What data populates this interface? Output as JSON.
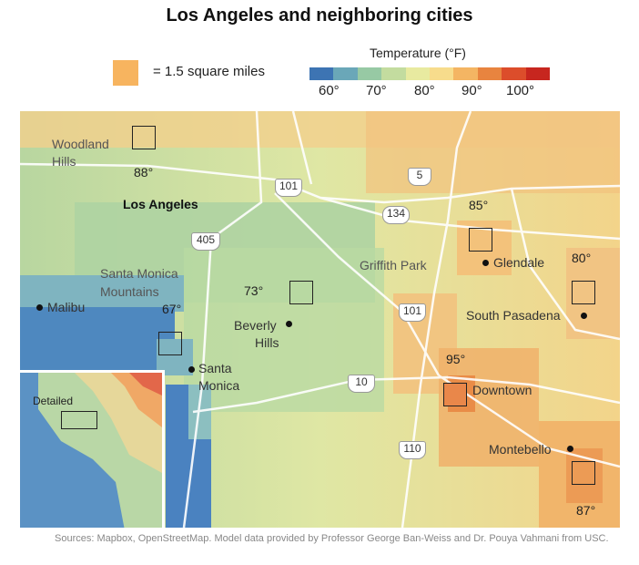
{
  "title": "Los Angeles and neighboring cities",
  "legend": {
    "swatch_label": "= 1.5 square miles",
    "swatch_color": "#f7b45f",
    "temperature_title": "Temperature (°F)",
    "scale_colors": [
      "#3d74b3",
      "#6aa7b8",
      "#97c9a4",
      "#c3dc9f",
      "#e8eaa0",
      "#f7dc8c",
      "#f4b563",
      "#e8843f",
      "#dc4d2b",
      "#c7261f"
    ],
    "ticks": [
      "60°",
      "70°",
      "80°",
      "90°",
      "100°"
    ]
  },
  "places": {
    "woodland_hills": "Woodland Hills",
    "woodland_line1": "Woodland",
    "woodland_line2": "Hills",
    "los_angeles": "Los Angeles",
    "santa_monica_mountains_1": "Santa Monica",
    "santa_monica_mountains_2": "Mountains",
    "malibu": "Malibu",
    "beverly_1": "Beverly",
    "beverly_2": "Hills",
    "santa_monica_1": "Santa",
    "santa_monica_2": "Monica",
    "griffith_park": "Griffith Park",
    "glendale": "Glendale",
    "south_pasadena": "South Pasadena",
    "downtown": "Downtown",
    "montebello": "Montebello"
  },
  "highways": [
    "101",
    "5",
    "134",
    "405",
    "101",
    "10",
    "110"
  ],
  "temperatures": {
    "woodland_hills": "88°",
    "glendale": "85°",
    "south_pasadena": "80°",
    "beverly_hills": "73°",
    "santa_monica": "67°",
    "downtown": "95°",
    "montebello": "87°"
  },
  "inset": {
    "label": "Detailed"
  },
  "sources": "Sources: Mapbox, OpenStreetMap. Model data provided by Professor George Ban-Weiss and Dr. Pouya Vahmani from USC."
}
